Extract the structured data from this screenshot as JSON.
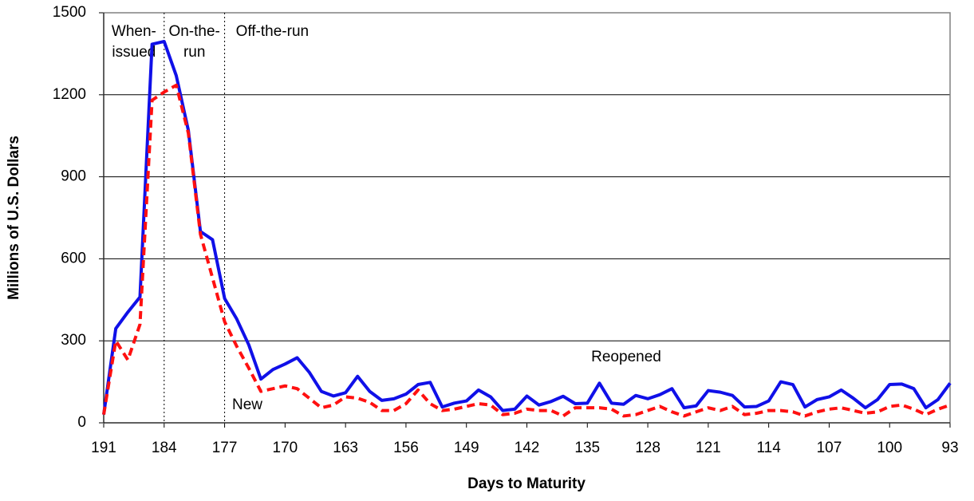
{
  "chart_data": {
    "type": "line",
    "x_label": "Days to Maturity",
    "y_label": "Millions of U.S. Dollars",
    "x": [
      191,
      189.6,
      188.2,
      186.8,
      185.4,
      184,
      182.6,
      181.2,
      179.8,
      178.4,
      177,
      175.6,
      174.2,
      172.8,
      171.4,
      170,
      168.6,
      167.2,
      165.8,
      164.4,
      163,
      161.6,
      160.2,
      158.8,
      157.4,
      156,
      154.6,
      153.2,
      151.8,
      150.4,
      149,
      147.6,
      146.2,
      144.8,
      143.4,
      142,
      140.6,
      139.2,
      137.8,
      136.4,
      135,
      133.6,
      132.2,
      130.8,
      129.4,
      128,
      126.6,
      125.2,
      123.8,
      122.4,
      121,
      119.6,
      118.2,
      116.8,
      115.4,
      114,
      112.6,
      111.2,
      109.8,
      108.4,
      107,
      105.6,
      104.2,
      102.8,
      101.4,
      100,
      98.6,
      97.2,
      95.8,
      94.4,
      93
    ],
    "series": [
      {
        "name": "Reopened",
        "color": "#1010e8",
        "dash": false,
        "values": [
          30,
          345,
          405,
          460,
          1385,
          1395,
          1270,
          1070,
          700,
          670,
          455,
          380,
          285,
          160,
          195,
          215,
          238,
          185,
          115,
          98,
          110,
          170,
          115,
          82,
          88,
          105,
          140,
          148,
          58,
          72,
          80,
          120,
          95,
          45,
          50,
          98,
          65,
          78,
          97,
          70,
          72,
          145,
          72,
          68,
          100,
          88,
          103,
          125,
          55,
          62,
          118,
          112,
          100,
          58,
          60,
          80,
          150,
          140,
          58,
          85,
          95,
          120,
          90,
          55,
          85,
          140,
          142,
          125,
          55,
          85,
          145
        ]
      },
      {
        "name": "New",
        "color": "#ff1010",
        "dash": true,
        "values": [
          30,
          300,
          230,
          360,
          1180,
          1210,
          1235,
          1060,
          690,
          530,
          370,
          280,
          200,
          115,
          125,
          135,
          125,
          90,
          55,
          65,
          95,
          90,
          75,
          45,
          45,
          70,
          120,
          70,
          45,
          50,
          60,
          70,
          65,
          30,
          35,
          50,
          45,
          45,
          25,
          55,
          55,
          55,
          50,
          25,
          30,
          45,
          60,
          40,
          25,
          40,
          55,
          45,
          60,
          30,
          35,
          45,
          45,
          40,
          25,
          40,
          50,
          55,
          45,
          35,
          40,
          60,
          65,
          50,
          30,
          50,
          65
        ]
      }
    ],
    "xlim": [
      191,
      93
    ],
    "xticks": [
      191,
      184,
      177,
      170,
      163,
      156,
      149,
      142,
      135,
      128,
      121,
      114,
      107,
      100,
      93
    ],
    "ylim": [
      0,
      1500
    ],
    "yticks": [
      0,
      300,
      600,
      900,
      1200,
      1500
    ],
    "grid": true,
    "vlines": [
      184,
      177
    ],
    "regions": [
      {
        "lines": [
          "When-",
          "issued"
        ],
        "from": 191,
        "to": 184
      },
      {
        "lines": [
          "On-the-",
          "run"
        ],
        "from": 184,
        "to": 177
      },
      {
        "lines": [
          "Off-the-run"
        ],
        "from": 177,
        "to": 163
      }
    ]
  }
}
